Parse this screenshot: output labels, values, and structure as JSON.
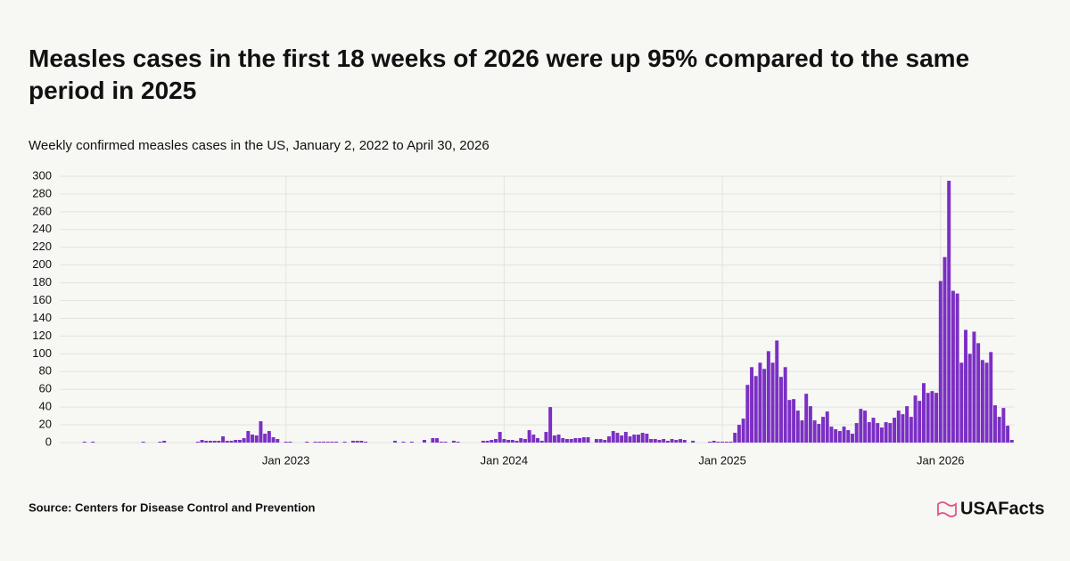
{
  "chart_data": {
    "type": "bar",
    "title": "Measles cases in the first 18 weeks of 2026 were up 95% compared to the same period in 2025",
    "subtitle": "Weekly confirmed measles cases in the US, January 2, 2022 to April 30, 2026",
    "source": "Source: Centers for Disease Control and Prevention",
    "brand": "USAFacts",
    "color": "#7b2fc4",
    "grid": true,
    "ylim": [
      0,
      300
    ],
    "yticks": [
      0,
      20,
      40,
      60,
      80,
      100,
      120,
      140,
      160,
      180,
      200,
      220,
      240,
      260,
      280,
      300
    ],
    "categories": [
      null,
      null,
      null,
      null,
      null,
      null,
      null,
      null,
      null,
      null,
      null,
      null,
      null,
      null,
      null,
      null,
      null,
      null,
      null,
      null,
      null,
      null,
      null,
      null,
      null,
      null,
      null,
      null,
      null,
      null,
      null,
      null,
      null,
      null,
      null,
      null,
      null,
      null,
      null,
      null,
      null,
      null,
      null,
      null,
      null,
      null,
      null,
      null,
      null,
      null,
      null,
      null,
      "Jan 2023",
      null,
      null,
      null,
      null,
      null,
      null,
      null,
      null,
      null,
      null,
      null,
      null,
      null,
      null,
      null,
      null,
      null,
      null,
      null,
      null,
      null,
      null,
      null,
      null,
      null,
      null,
      null,
      null,
      null,
      null,
      null,
      null,
      null,
      null,
      null,
      null,
      null,
      null,
      null,
      null,
      null,
      null,
      null,
      null,
      null,
      null,
      null,
      null,
      null,
      null,
      null,
      "Jan 2024",
      null,
      null,
      null,
      null,
      null,
      null,
      null,
      null,
      null,
      null,
      null,
      null,
      null,
      null,
      null,
      null,
      null,
      null,
      null,
      null,
      null,
      null,
      null,
      null,
      null,
      null,
      null,
      null,
      null,
      null,
      null,
      null,
      null,
      null,
      null,
      null,
      null,
      null,
      null,
      null,
      null,
      null,
      null,
      null,
      null,
      null,
      null,
      null,
      null,
      null,
      null,
      "Jan 2025",
      null,
      null,
      null,
      null,
      null,
      null,
      null,
      null,
      null,
      null,
      null,
      null,
      null,
      null,
      null,
      null,
      null,
      null,
      null,
      null,
      null,
      null,
      null,
      null,
      null,
      null,
      null,
      null,
      null,
      null,
      null,
      null,
      null,
      null,
      null,
      null,
      null,
      null,
      null,
      null,
      null,
      null,
      null,
      null,
      null,
      null,
      null,
      null,
      null,
      null,
      null,
      "Jan 2026",
      null,
      null,
      null,
      null,
      null,
      null,
      null,
      null,
      null,
      null,
      null,
      null,
      null,
      null,
      null,
      null,
      null
    ],
    "values": [
      0,
      0,
      0,
      0,
      1,
      0,
      1,
      0,
      0,
      0,
      0,
      0,
      0,
      0,
      0,
      0,
      0,
      0,
      1,
      0,
      0,
      0,
      1,
      2,
      0,
      0,
      0,
      0,
      0,
      0,
      0,
      1,
      3,
      2,
      2,
      2,
      2,
      7,
      2,
      2,
      3,
      3,
      5,
      13,
      9,
      8,
      24,
      10,
      13,
      6,
      4,
      0,
      1,
      1,
      0,
      0,
      0,
      1,
      0,
      1,
      1,
      1,
      1,
      1,
      1,
      0,
      1,
      0,
      2,
      2,
      2,
      1,
      0,
      0,
      0,
      0,
      0,
      0,
      2,
      0,
      1,
      0,
      1,
      0,
      0,
      3,
      0,
      5,
      5,
      1,
      1,
      0,
      2,
      1,
      0,
      0,
      0,
      0,
      0,
      2,
      2,
      3,
      4,
      12,
      4,
      3,
      3,
      2,
      5,
      4,
      14,
      9,
      5,
      2,
      12,
      40,
      8,
      9,
      5,
      4,
      4,
      5,
      5,
      6,
      6,
      0,
      4,
      4,
      3,
      7,
      13,
      11,
      8,
      12,
      7,
      9,
      9,
      11,
      10,
      4,
      4,
      3,
      4,
      2,
      4,
      3,
      4,
      3,
      0,
      2,
      0,
      0,
      0,
      1,
      2,
      1,
      1,
      1,
      1,
      11,
      20,
      27,
      65,
      85,
      75,
      90,
      83,
      103,
      90,
      115,
      74,
      85,
      48,
      49,
      36,
      25,
      55,
      41,
      25,
      21,
      29,
      35,
      18,
      15,
      13,
      18,
      14,
      10,
      22,
      38,
      36,
      23,
      28,
      22,
      17,
      23,
      22,
      28,
      36,
      32,
      41,
      29,
      53,
      47,
      67,
      56,
      58,
      56,
      182,
      209,
      295,
      171,
      168,
      90,
      127,
      100,
      125,
      112,
      93,
      90,
      102,
      42,
      29,
      39,
      19,
      3
    ]
  }
}
